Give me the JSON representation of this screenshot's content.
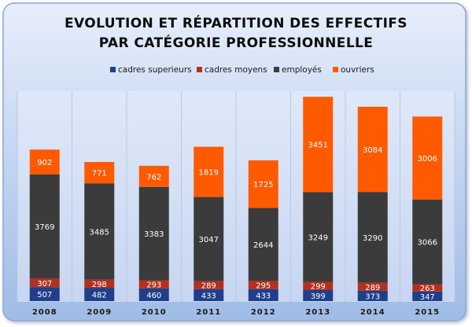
{
  "colors": {
    "cadres_superieurs": "#1f3f8a",
    "cadres_moyens": "#b3301f",
    "employes": "#3b3b3b",
    "ouvriers": "#ff5a00",
    "title_text": "#0d0d0d",
    "tick_text": "#1a1a1a",
    "frame_top": "#e7eefb",
    "frame_bottom": "#9fbce6",
    "plot_bg": "#d7e3f7",
    "divider": "#b8c9e8"
  },
  "chart_data": {
    "type": "bar",
    "stacked": true,
    "title_line1": "EVOLUTION ET RÉPARTITION DES EFFECTIFS",
    "title_line2": "PAR CATÉGORIE PROFESSIONNELLE",
    "legend_position": "top",
    "categories": [
      "2008",
      "2009",
      "2010",
      "2011",
      "2012",
      "2013",
      "2014",
      "2015"
    ],
    "series": [
      {
        "name": "cadres superieurs",
        "key": "cadres_superieurs",
        "values": [
          507,
          482,
          460,
          433,
          433,
          399,
          373,
          347
        ]
      },
      {
        "name": "cadres moyens",
        "key": "cadres_moyens",
        "values": [
          307,
          298,
          293,
          289,
          295,
          299,
          289,
          263
        ]
      },
      {
        "name": "employés",
        "key": "employes",
        "values": [
          3769,
          3485,
          3383,
          3047,
          2644,
          3249,
          3290,
          3066
        ]
      },
      {
        "name": "ouvriers",
        "key": "ouvriers",
        "values": [
          902,
          771,
          762,
          1819,
          1725,
          3451,
          3084,
          3006
        ]
      }
    ],
    "ylim": [
      0,
      7600
    ]
  }
}
